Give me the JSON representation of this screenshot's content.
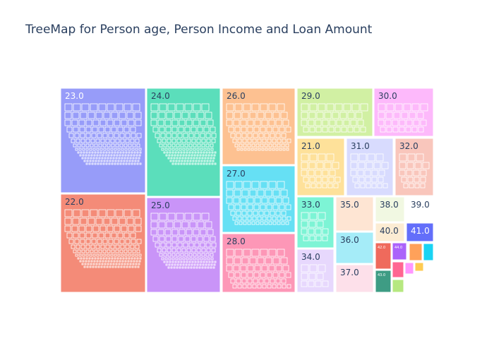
{
  "chart_data": {
    "type": "treemap",
    "title": "TreeMap for Person age, Person Income and Loan Amount",
    "hierarchy": [
      "Person age",
      "Person Income",
      "Loan Amount"
    ],
    "labels_shown": [
      "23.0",
      "22.0",
      "24.0",
      "25.0",
      "26.0",
      "27.0",
      "28.0",
      "29.0",
      "30.0",
      "21.0",
      "31.0",
      "32.0",
      "33.0",
      "35.0",
      "38.0",
      "39.0",
      "34.0",
      "36.0",
      "40.0",
      "41.0",
      "37.0",
      "42.0",
      "44.0",
      "43.0"
    ],
    "nodes": [
      {
        "label": "23.0",
        "color": "#979cf9"
      },
      {
        "label": "22.0",
        "color": "#f48b78"
      },
      {
        "label": "24.0",
        "color": "#5bdebb"
      },
      {
        "label": "25.0",
        "color": "#c994f8"
      },
      {
        "label": "26.0",
        "color": "#fdc191"
      },
      {
        "label": "27.0",
        "color": "#66e0f4"
      },
      {
        "label": "28.0",
        "color": "#fd97b7"
      },
      {
        "label": "29.0",
        "color": "#d1f0a3"
      },
      {
        "label": "30.0",
        "color": "#fdb9fb"
      },
      {
        "label": "21.0",
        "color": "#fee19a"
      },
      {
        "label": "31.0",
        "color": "#d8dbfe"
      },
      {
        "label": "32.0",
        "color": "#f9c6bc"
      },
      {
        "label": "33.0",
        "color": "#7df4d5"
      },
      {
        "label": "35.0",
        "color": "#fee5d3"
      },
      {
        "label": "38.0",
        "color": "#f1f8e2"
      },
      {
        "label": "39.0",
        "color": "#ffffff"
      },
      {
        "label": "34.0",
        "color": "#e7d8fd"
      },
      {
        "label": "36.0",
        "color": "#a5ecf8"
      },
      {
        "label": "40.0",
        "color": "#fcecd3"
      },
      {
        "label": "41.0",
        "color": "#636efa"
      },
      {
        "label": "37.0",
        "color": "#fde0ea"
      },
      {
        "label": "42.0",
        "color": "#ef6a5c"
      },
      {
        "label": "44.0",
        "color": "#ab63fa"
      },
      {
        "label": "43.0",
        "color": "#3e9c84"
      },
      {
        "label": "",
        "color": "#ffa15a"
      },
      {
        "label": "",
        "color": "#19d3f3"
      },
      {
        "label": "",
        "color": "#ff6692"
      },
      {
        "label": "",
        "color": "#b6e880"
      },
      {
        "label": "",
        "color": "#ff97ff"
      },
      {
        "label": "",
        "color": "#fecb52"
      }
    ]
  }
}
